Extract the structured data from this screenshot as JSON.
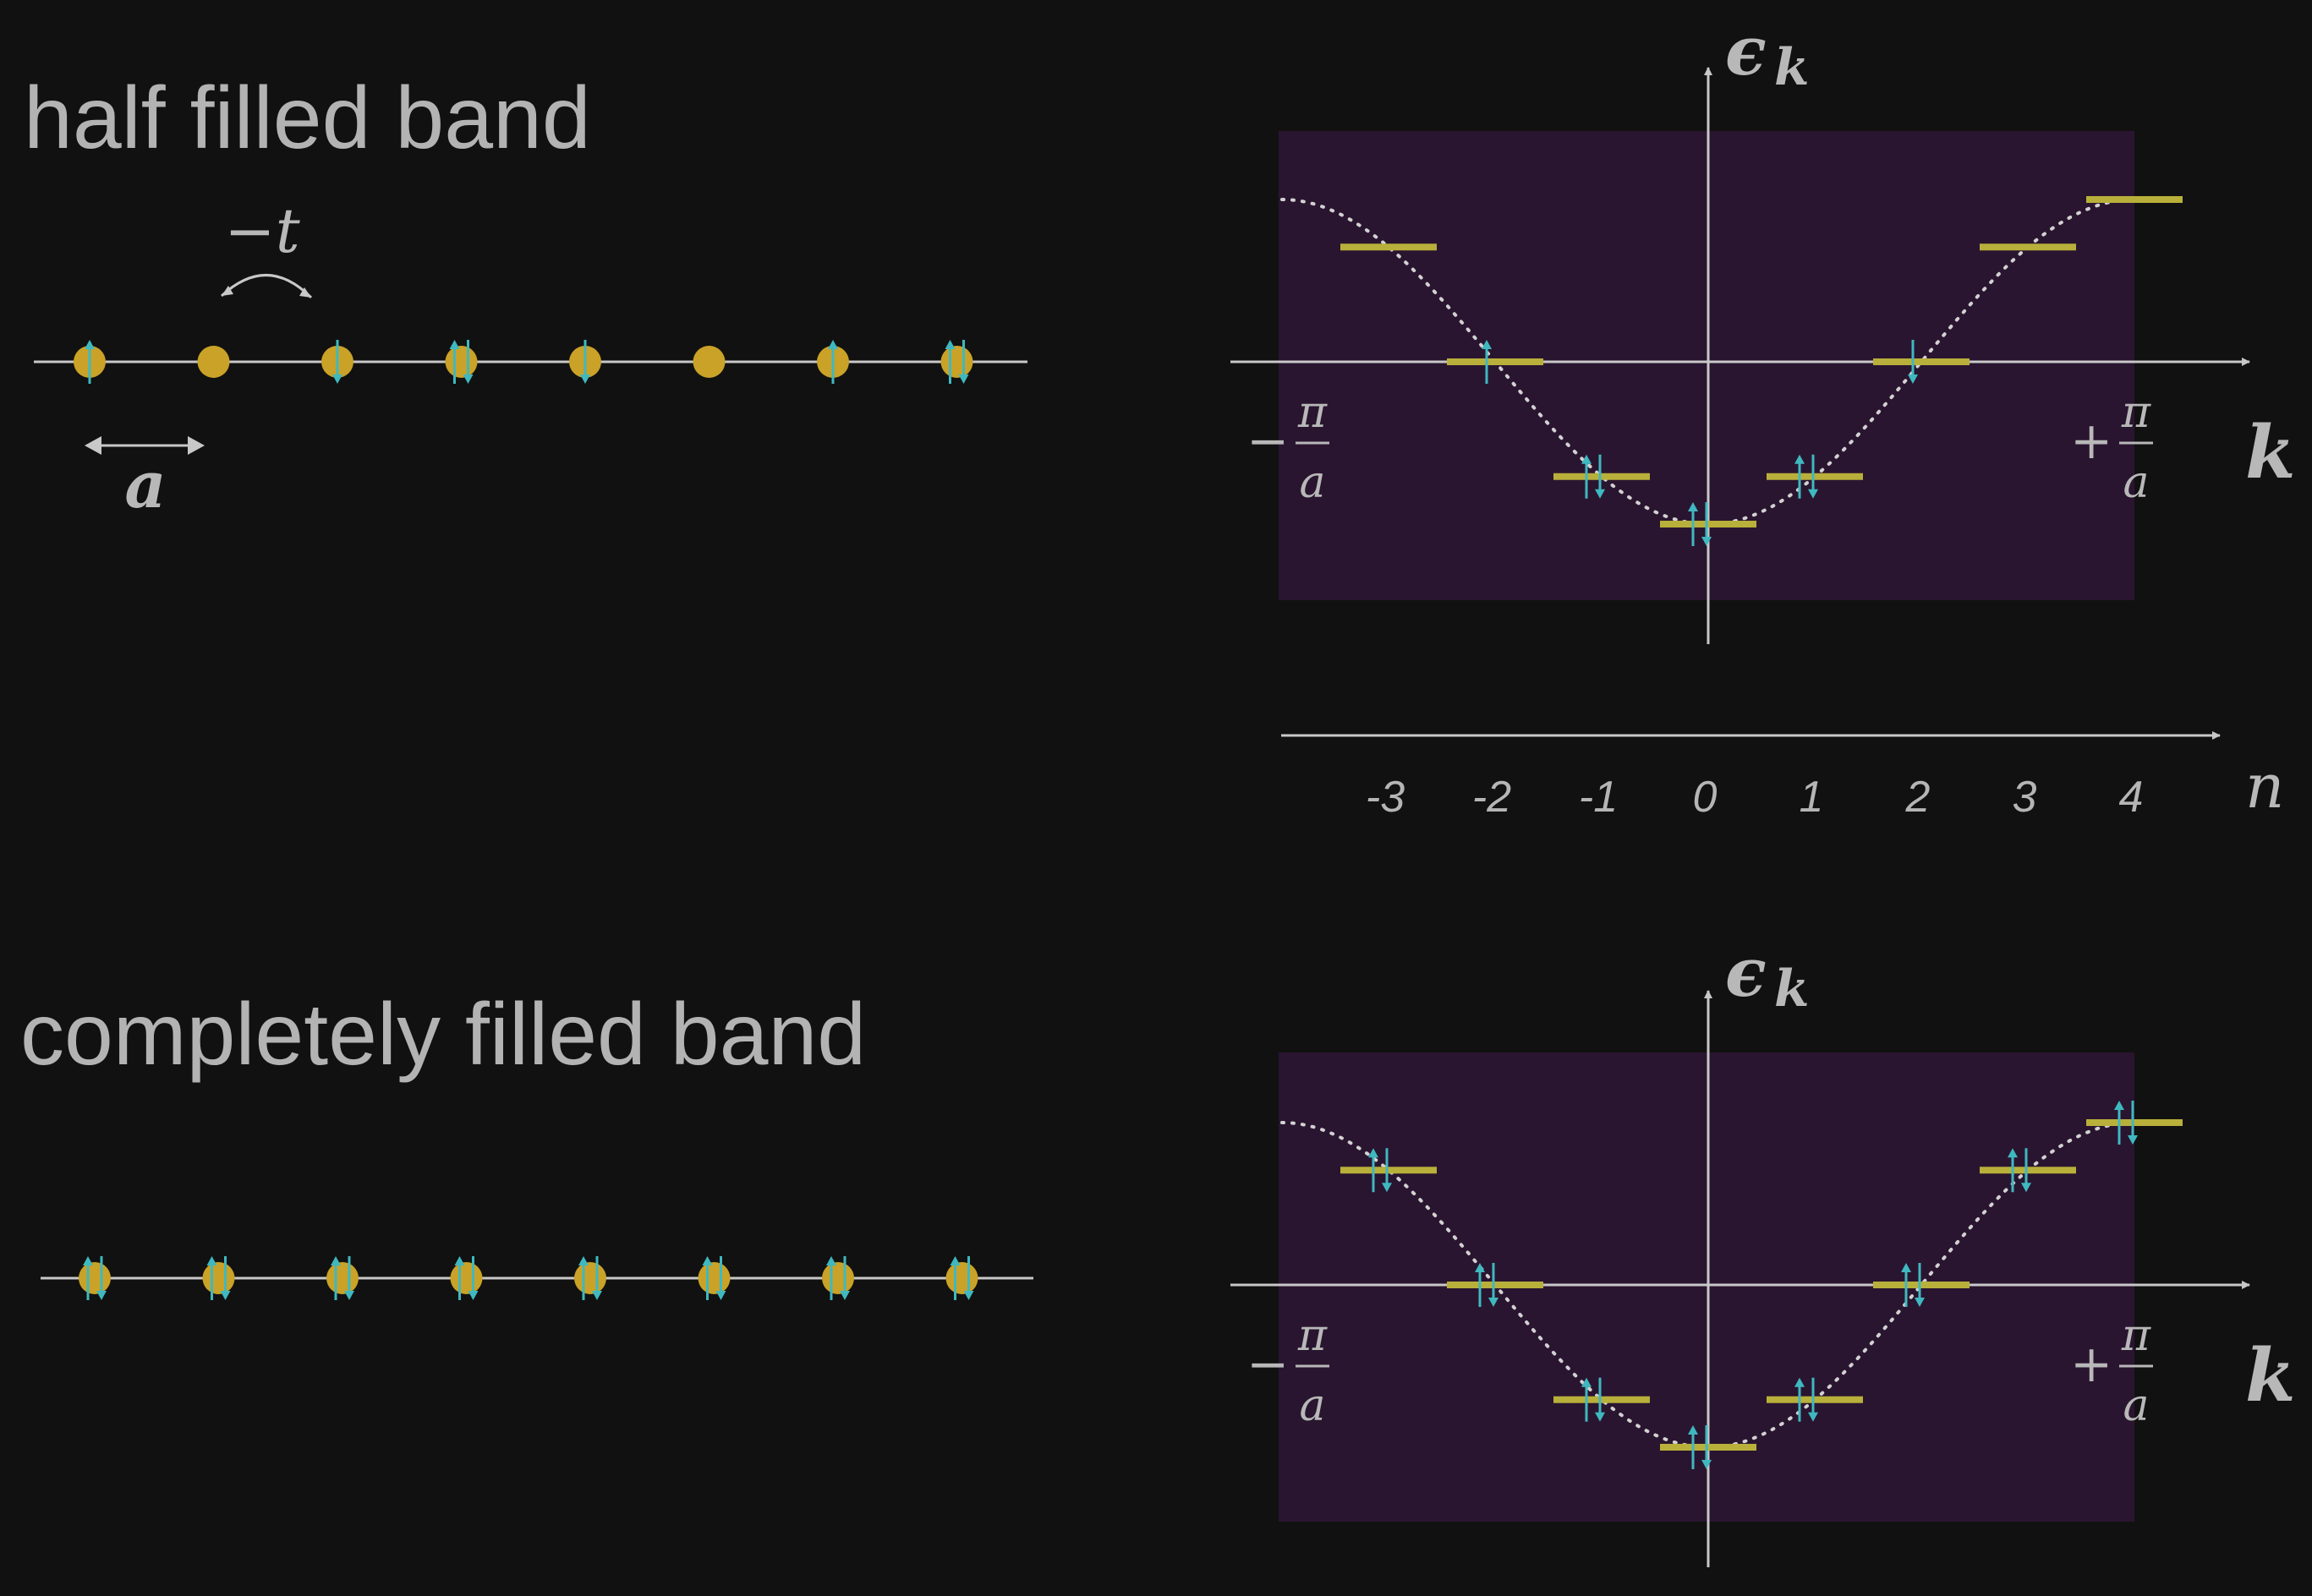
{
  "titles": {
    "half": "half filled band",
    "full": "completely filled band"
  },
  "colors": {
    "background": "#111111",
    "axis": "#c8c8c8",
    "text": "#b5b5b5",
    "atom": "#c9a227",
    "level": "#b8b03a",
    "spin": "#3fb8c0",
    "zone": "#2a1530",
    "curve": "#d2d2d2"
  },
  "chain_labels": {
    "hopping": "−t",
    "spacing": "a"
  },
  "axis_labels": {
    "energy_symbol": "ϵ",
    "energy_subscript": "k",
    "k": "k",
    "n": "n",
    "left_sign": "−",
    "right_sign": "+",
    "pi": "π",
    "a": "a"
  },
  "n_axis": {
    "ticks": [
      "-3",
      "-2",
      "-1",
      "0",
      "1",
      "2",
      "3",
      "4"
    ]
  },
  "half_chain": {
    "sites": [
      "up",
      "empty",
      "down",
      "updown",
      "down",
      "empty",
      "up",
      "updown"
    ]
  },
  "full_chain": {
    "sites": [
      "updown",
      "updown",
      "updown",
      "updown",
      "updown",
      "updown",
      "updown",
      "updown"
    ]
  },
  "band_levels": {
    "n": [
      -3,
      -2,
      -1,
      0,
      1,
      2,
      3,
      4
    ],
    "energy": [
      0.707,
      0,
      -0.707,
      -1,
      -0.707,
      0,
      0.707,
      1
    ],
    "half_filling": [
      "empty",
      "up",
      "updown",
      "updown",
      "updown",
      "down",
      "empty",
      "empty"
    ],
    "full_filling": [
      "updown",
      "updown",
      "updown",
      "updown",
      "updown",
      "updown",
      "updown",
      "updown"
    ]
  }
}
